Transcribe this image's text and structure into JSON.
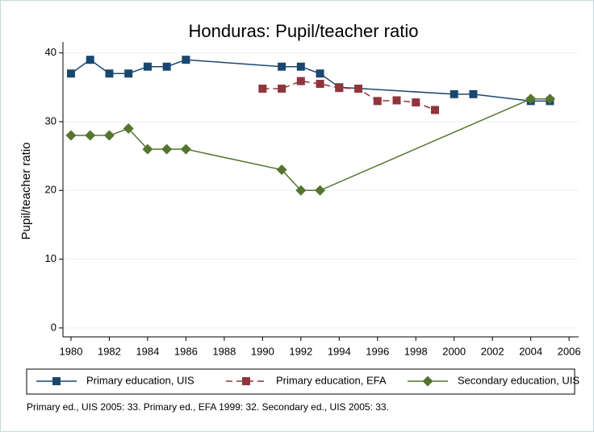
{
  "chart_data": {
    "type": "line",
    "title": "Honduras: Pupil/teacher ratio",
    "y_label": "Pupil/teacher ratio",
    "note": "Primary ed., UIS 2005: 33. Primary ed., EFA 1999: 32. Secondary ed., UIS 2005: 33.",
    "xlim": [
      1979.58,
      2006.5
    ],
    "xticks": [
      1980,
      1982,
      1984,
      1986,
      1988,
      1990,
      1992,
      1994,
      1996,
      1998,
      2000,
      2002,
      2004,
      2006
    ],
    "ylim": [
      -1.3,
      41.6
    ],
    "yticks": [
      0,
      10,
      20,
      30,
      40
    ],
    "grid": true,
    "series": [
      {
        "name": "Primary education, UIS",
        "color": "#1a476f",
        "marker": "square",
        "dash": false,
        "x": [
          1980,
          1981,
          1982,
          1983,
          1984,
          1985,
          1986,
          1991,
          1992,
          1993,
          1994,
          2000,
          2001,
          2004,
          2005
        ],
        "values": [
          37,
          39,
          37,
          37,
          38,
          38,
          39,
          38,
          38,
          37,
          35,
          34,
          34,
          33,
          33
        ]
      },
      {
        "name": "Primary education, EFA",
        "color": "#90353b",
        "marker": "square",
        "dash": true,
        "x": [
          1990,
          1991,
          1992,
          1993,
          1994,
          1995,
          1996,
          1997,
          1998,
          1999
        ],
        "values": [
          34.8,
          34.8,
          35.9,
          35.5,
          34.9,
          34.8,
          33,
          33.1,
          32.8,
          31.7
        ]
      },
      {
        "name": "Secondary education, UIS",
        "color": "#55752f",
        "marker": "diamond",
        "dash": false,
        "x": [
          1980,
          1981,
          1982,
          1983,
          1984,
          1985,
          1986,
          1991,
          1992,
          1993,
          2004,
          2005
        ],
        "values": [
          28,
          28,
          28,
          29,
          26,
          26,
          26,
          23,
          20,
          20,
          33.3,
          33.3
        ]
      }
    ]
  }
}
